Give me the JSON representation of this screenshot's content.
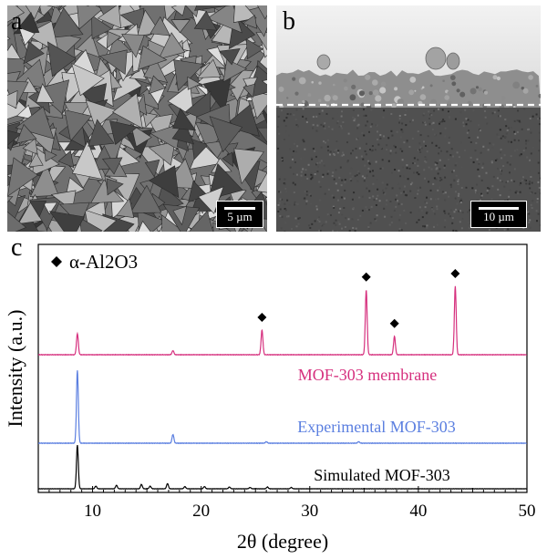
{
  "panels": {
    "a": {
      "letter": "a",
      "scale_bar": "5 µm"
    },
    "b": {
      "letter": "b",
      "scale_bar": "10 µm"
    },
    "c": {
      "letter": "c"
    }
  },
  "chart_data": {
    "type": "line",
    "xlabel": "2θ (degree)",
    "ylabel": "Intensity (a.u.)",
    "xlim": [
      5,
      50
    ],
    "xticks": [
      10,
      20,
      30,
      40,
      50
    ],
    "legend": {
      "marker": "diamond",
      "label": "α-Al2O3",
      "placement": "top-left"
    },
    "series": [
      {
        "name": "MOF-303 membrane",
        "color": "#d6307e",
        "peaks": [
          [
            8.6,
            0.31
          ],
          [
            17.4,
            0.06
          ],
          [
            25.6,
            0.36
          ],
          [
            35.2,
            0.95
          ],
          [
            37.8,
            0.27
          ],
          [
            43.4,
            1.0
          ]
        ],
        "alumina_peaks": [
          25.6,
          35.2,
          37.8,
          43.4
        ]
      },
      {
        "name": "Experimental MOF-303",
        "color": "#5b7fe0",
        "peaks": [
          [
            8.6,
            1.0
          ],
          [
            17.4,
            0.12
          ],
          [
            26.0,
            0.02
          ],
          [
            34.5,
            0.02
          ]
        ]
      },
      {
        "name": "Simulated MOF-303",
        "color": "#000000",
        "peaks": [
          [
            8.6,
            1.0
          ],
          [
            10.3,
            0.06
          ],
          [
            12.2,
            0.08
          ],
          [
            14.5,
            0.1
          ],
          [
            15.3,
            0.06
          ],
          [
            16.9,
            0.12
          ],
          [
            18.5,
            0.05
          ],
          [
            20.3,
            0.05
          ],
          [
            22.6,
            0.04
          ],
          [
            24.5,
            0.03
          ],
          [
            26.1,
            0.04
          ],
          [
            28.3,
            0.03
          ]
        ]
      }
    ]
  }
}
